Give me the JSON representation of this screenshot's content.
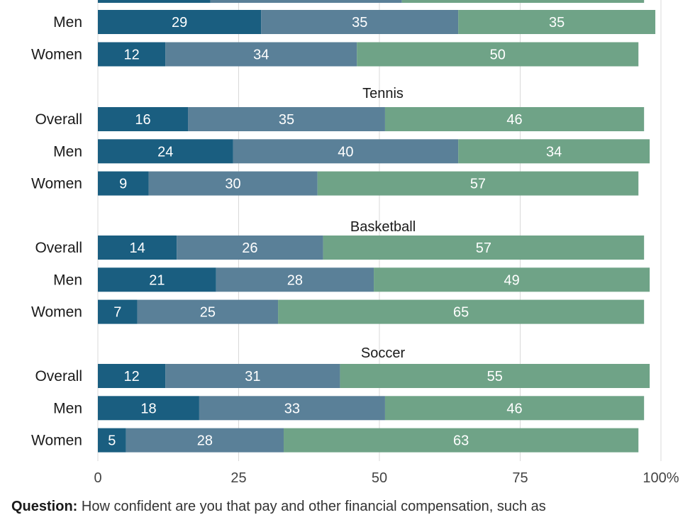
{
  "colors": {
    "not_confident": "#1a5e80",
    "somewhat_confident": "#5a8098",
    "very_confident": "#6fa387",
    "grid": "#d9d9d9",
    "text": "#1a1a1a",
    "bar_label": "#ffffff"
  },
  "chart_data": {
    "type": "bar",
    "orientation": "horizontal",
    "stacked": true,
    "xlim": [
      0,
      100
    ],
    "x_ticks": [
      "0",
      "25",
      "50",
      "75",
      "100%"
    ],
    "grid": true,
    "series_count": 3,
    "groups": [
      {
        "title": "",
        "rows": [
          {
            "label": "",
            "values": [
              20,
              34,
              43
            ]
          }
        ],
        "partial": true
      },
      {
        "title": "",
        "rows": [
          {
            "label": "Men",
            "values": [
              29,
              35,
              35
            ]
          },
          {
            "label": "Women",
            "values": [
              12,
              34,
              50
            ]
          }
        ]
      },
      {
        "title": "Tennis",
        "rows": [
          {
            "label": "Overall",
            "values": [
              16,
              35,
              46
            ]
          },
          {
            "label": "Men",
            "values": [
              24,
              40,
              34
            ]
          },
          {
            "label": "Women",
            "values": [
              9,
              30,
              57
            ]
          }
        ]
      },
      {
        "title": "Basketball",
        "rows": [
          {
            "label": "Overall",
            "values": [
              14,
              26,
              57
            ]
          },
          {
            "label": "Men",
            "values": [
              21,
              28,
              49
            ]
          },
          {
            "label": "Women",
            "values": [
              7,
              25,
              65
            ]
          }
        ]
      },
      {
        "title": "Soccer",
        "rows": [
          {
            "label": "Overall",
            "values": [
              12,
              31,
              55
            ]
          },
          {
            "label": "Men",
            "values": [
              18,
              33,
              46
            ]
          },
          {
            "label": "Women",
            "values": [
              5,
              28,
              63
            ]
          }
        ]
      }
    ]
  },
  "footer": {
    "question_label": "Question:",
    "question_text": " How confident are you that pay and other financial compensation, such as"
  }
}
